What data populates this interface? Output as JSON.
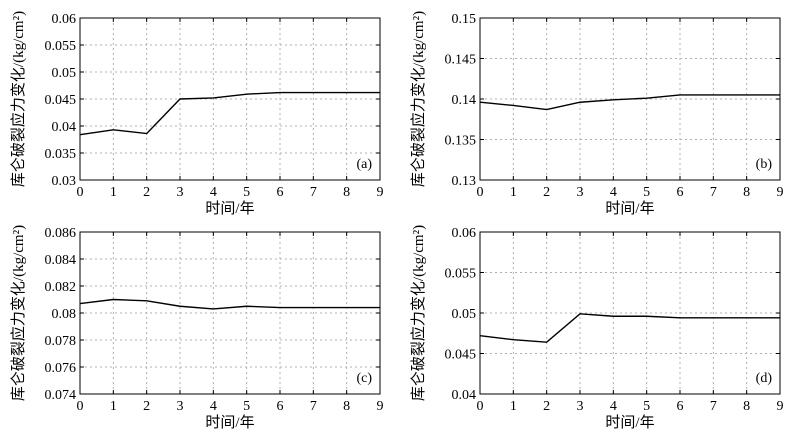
{
  "chart_data": [
    {
      "type": "line",
      "panel_label": "(a)",
      "xlabel": "时间/年",
      "ylabel": "库仑破裂应力变化/(kg/cm²)",
      "xlim": [
        0,
        9
      ],
      "ylim": [
        0.03,
        0.06
      ],
      "xticks": [
        "0",
        "1",
        "2",
        "3",
        "4",
        "5",
        "6",
        "7",
        "8",
        "9"
      ],
      "yticks": [
        "0.03",
        "0.035",
        "0.04",
        "0.045",
        "0.05",
        "0.055",
        "0.06"
      ],
      "grid": true,
      "x": [
        0,
        1,
        2,
        3,
        4,
        5,
        6,
        7,
        8,
        9
      ],
      "series": [
        {
          "values": [
            0.0384,
            0.0393,
            0.0386,
            0.045,
            0.0452,
            0.0459,
            0.0462,
            0.0462,
            0.0462,
            0.0462
          ]
        }
      ]
    },
    {
      "type": "line",
      "panel_label": "(b)",
      "xlabel": "时间/年",
      "ylabel": "库仑破裂应力变化/(kg/cm²)",
      "xlim": [
        0,
        9
      ],
      "ylim": [
        0.13,
        0.15
      ],
      "xticks": [
        "0",
        "1",
        "2",
        "3",
        "4",
        "5",
        "6",
        "7",
        "8",
        "9"
      ],
      "yticks": [
        "0.13",
        "0.135",
        "0.14",
        "0.145",
        "0.15"
      ],
      "grid": true,
      "x": [
        0,
        1,
        2,
        3,
        4,
        5,
        6,
        7,
        8,
        9
      ],
      "series": [
        {
          "values": [
            0.1396,
            0.1392,
            0.1387,
            0.1396,
            0.1399,
            0.1401,
            0.1405,
            0.1405,
            0.1405,
            0.1405
          ]
        }
      ]
    },
    {
      "type": "line",
      "panel_label": "(c)",
      "xlabel": "时间/年",
      "ylabel": "库仑破裂应力变化/(kg/cm²)",
      "xlim": [
        0,
        9
      ],
      "ylim": [
        0.074,
        0.086
      ],
      "xticks": [
        "0",
        "1",
        "2",
        "3",
        "4",
        "5",
        "6",
        "7",
        "8",
        "9"
      ],
      "yticks": [
        "0.074",
        "0.076",
        "0.078",
        "0.08",
        "0.082",
        "0.084",
        "0.086"
      ],
      "grid": true,
      "x": [
        0,
        1,
        2,
        3,
        4,
        5,
        6,
        7,
        8,
        9
      ],
      "series": [
        {
          "values": [
            0.0807,
            0.081,
            0.0809,
            0.0805,
            0.0803,
            0.0805,
            0.0804,
            0.0804,
            0.0804,
            0.0804
          ]
        }
      ]
    },
    {
      "type": "line",
      "panel_label": "(d)",
      "xlabel": "时间/年",
      "ylabel": "库仑破裂应力变化/(kg/cm²)",
      "xlim": [
        0,
        9
      ],
      "ylim": [
        0.04,
        0.06
      ],
      "xticks": [
        "0",
        "1",
        "2",
        "3",
        "4",
        "5",
        "6",
        "7",
        "8",
        "9"
      ],
      "yticks": [
        "0.04",
        "0.045",
        "0.05",
        "0.055",
        "0.06"
      ],
      "grid": true,
      "x": [
        0,
        1,
        2,
        3,
        4,
        5,
        6,
        7,
        8,
        9
      ],
      "series": [
        {
          "values": [
            0.0472,
            0.0467,
            0.0464,
            0.0499,
            0.0496,
            0.0496,
            0.0494,
            0.0494,
            0.0494,
            0.0494
          ]
        }
      ]
    }
  ]
}
